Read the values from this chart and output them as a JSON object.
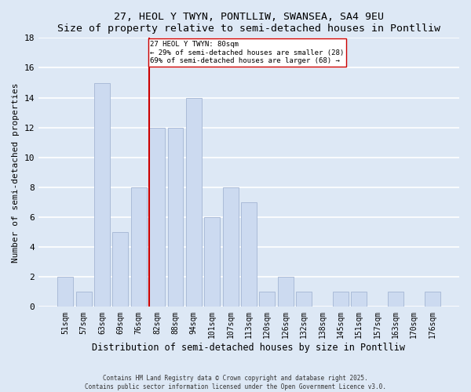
{
  "title": "27, HEOL Y TWYN, PONTLLIW, SWANSEA, SA4 9EU",
  "subtitle": "Size of property relative to semi-detached houses in Pontlliw",
  "xlabel": "Distribution of semi-detached houses by size in Pontlliw",
  "ylabel": "Number of semi-detached properties",
  "bar_labels": [
    "51sqm",
    "57sqm",
    "63sqm",
    "69sqm",
    "76sqm",
    "82sqm",
    "88sqm",
    "94sqm",
    "101sqm",
    "107sqm",
    "113sqm",
    "120sqm",
    "126sqm",
    "132sqm",
    "138sqm",
    "145sqm",
    "151sqm",
    "157sqm",
    "163sqm",
    "170sqm",
    "176sqm"
  ],
  "bar_values": [
    2,
    1,
    15,
    5,
    8,
    12,
    12,
    14,
    6,
    8,
    7,
    1,
    2,
    1,
    0,
    1,
    1,
    0,
    1,
    0,
    1
  ],
  "bar_color": "#ccdaf0",
  "bar_edge_color": "#aabbd8",
  "vline_x_index": 5,
  "vline_color": "#cc0000",
  "annotation_title": "27 HEOL Y TWYN: 80sqm",
  "annotation_line1": "← 29% of semi-detached houses are smaller (28)",
  "annotation_line2": "69% of semi-detached houses are larger (68) →",
  "annotation_box_color": "#ffffff",
  "annotation_box_edge": "#cc0000",
  "ylim": [
    0,
    18
  ],
  "yticks": [
    0,
    2,
    4,
    6,
    8,
    10,
    12,
    14,
    16,
    18
  ],
  "bg_color": "#dde8f5",
  "grid_color": "#ffffff",
  "footer1": "Contains HM Land Registry data © Crown copyright and database right 2025.",
  "footer2": "Contains public sector information licensed under the Open Government Licence v3.0."
}
